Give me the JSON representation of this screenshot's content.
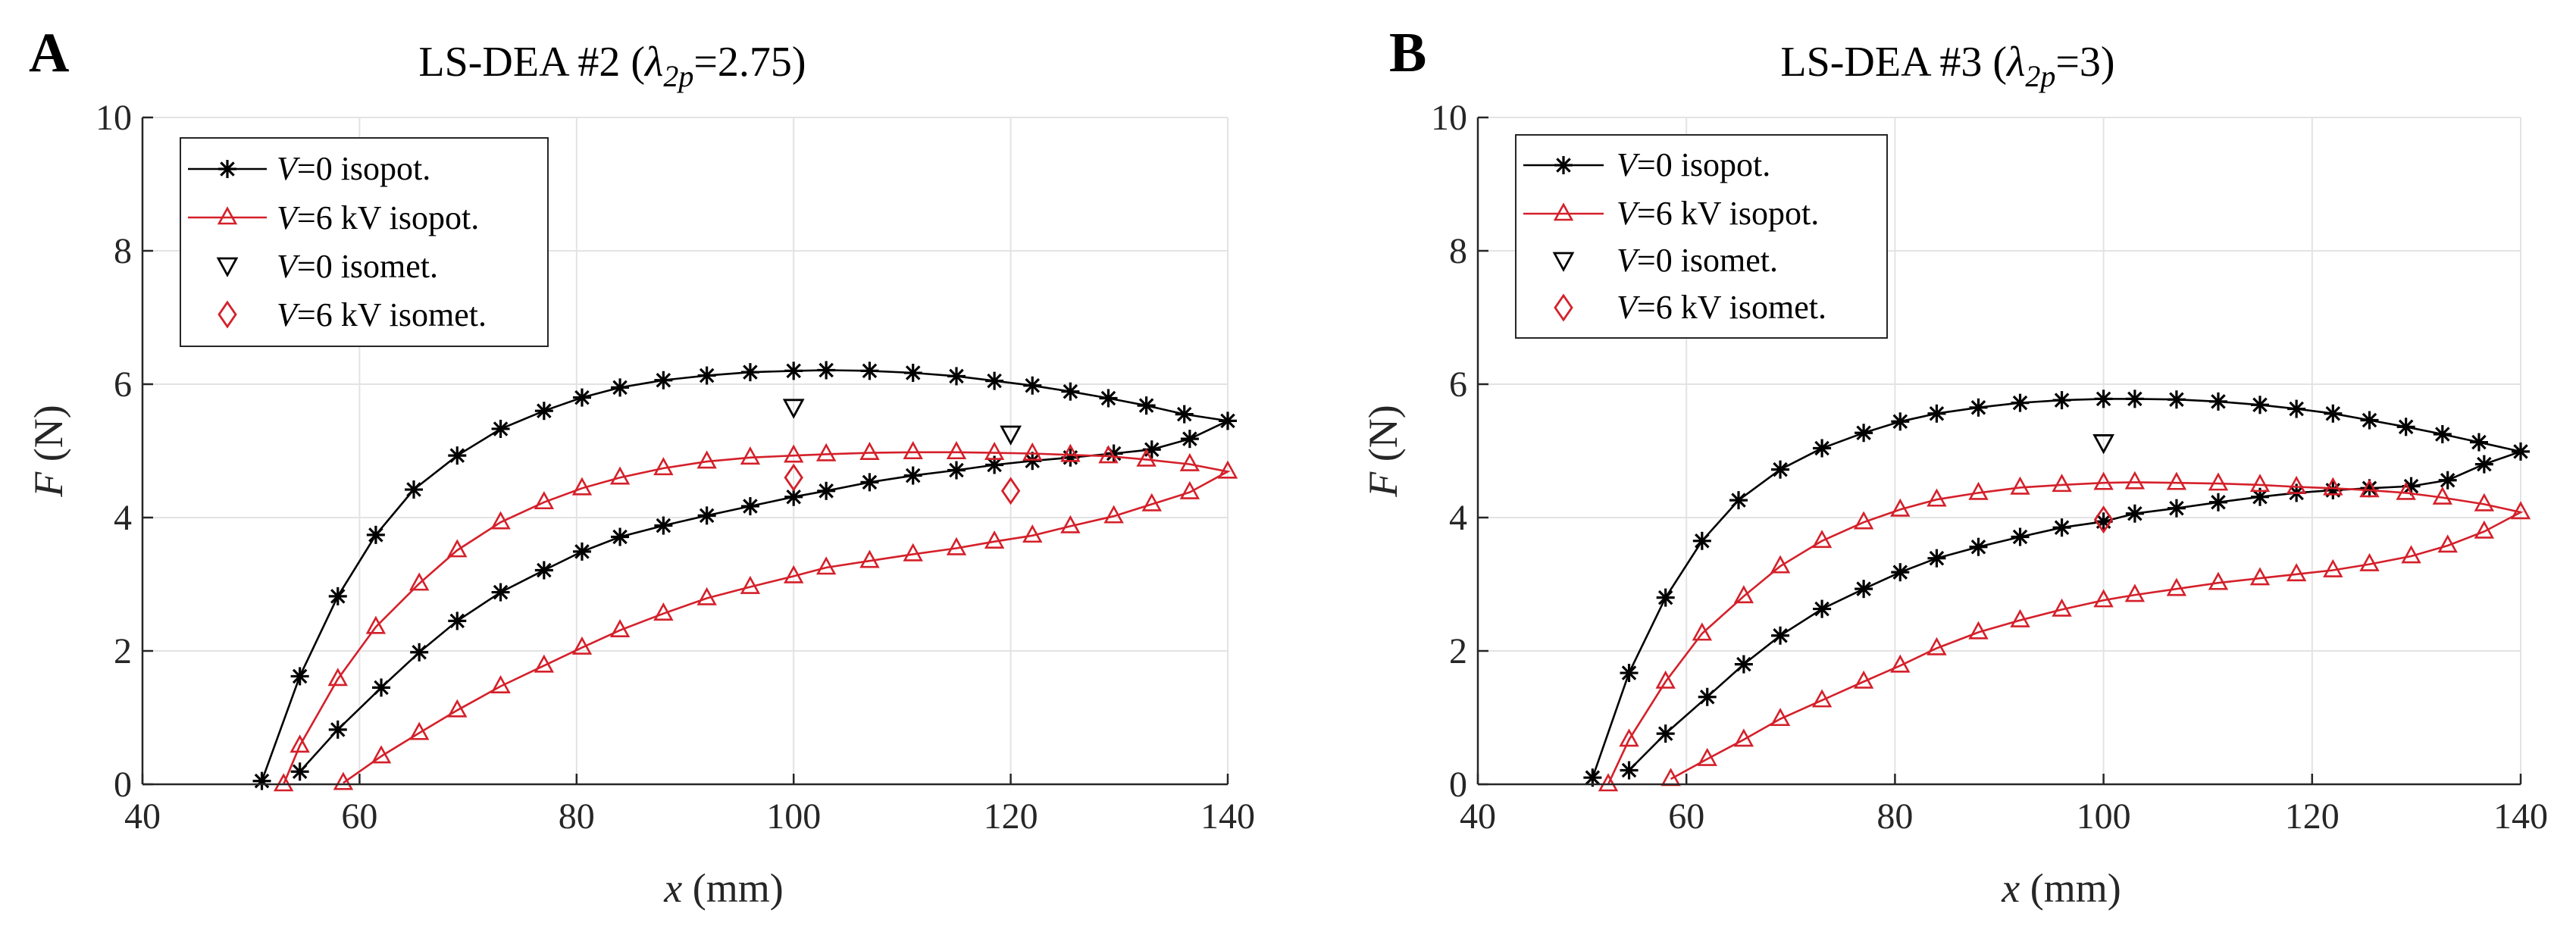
{
  "colors": {
    "black_series": "#000000",
    "red_series": "#d4202a",
    "grid": "#e3e3e3",
    "axis": "#262626",
    "background": "#ffffff"
  },
  "chart_data": [
    {
      "panel_label": "A",
      "type": "line",
      "title_prefix": "LS-DEA #2 (",
      "title_lambda": "λ",
      "title_subscript": "2p",
      "title_suffix": "=2.75)",
      "xlabel_var": "x",
      "xlabel_unit": " (mm)",
      "ylabel_var": "F",
      "ylabel_unit": " (N)",
      "xlim": [
        40,
        140
      ],
      "ylim": [
        0,
        10
      ],
      "xticks": [
        40,
        60,
        80,
        100,
        120,
        140
      ],
      "yticks": [
        0,
        2,
        4,
        6,
        8,
        10
      ],
      "xtick_labels": [
        "40",
        "60",
        "80",
        "100",
        "120",
        "140"
      ],
      "ytick_labels": [
        "0",
        "2",
        "4",
        "6",
        "8",
        "10"
      ],
      "grid": true,
      "legend_position": "top-left",
      "legend": [
        {
          "var": "V",
          "text": "=0 isopot."
        },
        {
          "var": "V",
          "text": "=6 kV isopot."
        },
        {
          "var": "V",
          "text": "=0 isomet."
        },
        {
          "var": "V",
          "text": "=6 kV isomet."
        }
      ],
      "series": [
        {
          "name": "V=0 isopot.",
          "color": "#000000",
          "marker": "star",
          "x": [
            51,
            54.5,
            58,
            61.5,
            65,
            69,
            73,
            77,
            80.5,
            84,
            88,
            92,
            96,
            100,
            103,
            107,
            111,
            115,
            118.5,
            122,
            125.5,
            129,
            132.5,
            136,
            140,
            136.5,
            133,
            129.5,
            125.5,
            122,
            118.5,
            115,
            111,
            107,
            103,
            100,
            96,
            92,
            88,
            84,
            80.5,
            77,
            73,
            69,
            65.5,
            62,
            58,
            54.5
          ],
          "y": [
            0.05,
            1.62,
            2.82,
            3.74,
            4.42,
            4.93,
            5.33,
            5.6,
            5.8,
            5.95,
            6.06,
            6.13,
            6.18,
            6.2,
            6.21,
            6.2,
            6.17,
            6.12,
            6.05,
            5.98,
            5.89,
            5.79,
            5.68,
            5.55,
            5.45,
            5.18,
            5.02,
            4.96,
            4.9,
            4.85,
            4.79,
            4.71,
            4.63,
            4.53,
            4.4,
            4.31,
            4.17,
            4.03,
            3.88,
            3.71,
            3.49,
            3.21,
            2.88,
            2.45,
            1.98,
            1.45,
            0.82,
            0.19
          ]
        },
        {
          "name": "V=6 kV isopot.",
          "color": "#d4202a",
          "marker": "triangle",
          "x": [
            53,
            54.5,
            58,
            61.5,
            65.5,
            69,
            73,
            77,
            80.5,
            84,
            88,
            92,
            96,
            100,
            103,
            107,
            111,
            115,
            118.5,
            122,
            125.5,
            129,
            132.5,
            136.5,
            140,
            136.5,
            133,
            129.5,
            125.5,
            122,
            118.5,
            115,
            111,
            107,
            103,
            100,
            96,
            92,
            88,
            84,
            80.5,
            77,
            73,
            69,
            65.5,
            62,
            58.5
          ],
          "y": [
            0.0,
            0.58,
            1.58,
            2.36,
            3.01,
            3.51,
            3.93,
            4.23,
            4.44,
            4.6,
            4.74,
            4.84,
            4.9,
            4.93,
            4.95,
            4.97,
            4.98,
            4.98,
            4.97,
            4.96,
            4.94,
            4.92,
            4.87,
            4.8,
            4.69,
            4.38,
            4.2,
            4.02,
            3.87,
            3.73,
            3.64,
            3.54,
            3.45,
            3.35,
            3.25,
            3.12,
            2.96,
            2.79,
            2.56,
            2.31,
            2.05,
            1.78,
            1.47,
            1.11,
            0.77,
            0.42,
            0.02
          ]
        },
        {
          "name": "V=0 isomet.",
          "color": "#000000",
          "marker": "triangle-down",
          "x": [
            100,
            120
          ],
          "y": [
            5.65,
            5.25
          ]
        },
        {
          "name": "V=6 kV isomet.",
          "color": "#d4202a",
          "marker": "diamond",
          "x": [
            100,
            120
          ],
          "y": [
            4.6,
            4.4
          ]
        }
      ]
    },
    {
      "panel_label": "B",
      "type": "line",
      "title_prefix": "LS-DEA #3 (",
      "title_lambda": "λ",
      "title_subscript": "2p",
      "title_suffix": "=3)",
      "xlabel_var": "x",
      "xlabel_unit": " (mm)",
      "ylabel_var": "F",
      "ylabel_unit": " (N)",
      "xlim": [
        40,
        140
      ],
      "ylim": [
        0,
        10
      ],
      "xticks": [
        40,
        60,
        80,
        100,
        120,
        140
      ],
      "yticks": [
        0,
        2,
        4,
        6,
        8,
        10
      ],
      "xtick_labels": [
        "40",
        "60",
        "80",
        "100",
        "120",
        "140"
      ],
      "ytick_labels": [
        "0",
        "2",
        "4",
        "6",
        "8",
        "10"
      ],
      "grid": true,
      "legend_position": "top-left",
      "legend": [
        {
          "var": "V",
          "text": "=0 isopot."
        },
        {
          "var": "V",
          "text": "=6 kV isopot."
        },
        {
          "var": "V",
          "text": "=0 isomet."
        },
        {
          "var": "V",
          "text": "=6 kV isomet."
        }
      ],
      "series": [
        {
          "name": "V=0 isopot.",
          "color": "#000000",
          "marker": "star",
          "x": [
            51,
            54.5,
            58,
            61.5,
            65,
            69,
            73,
            77,
            80.5,
            84,
            88,
            92,
            96,
            100,
            103,
            107,
            111,
            115,
            118.5,
            122,
            125.5,
            129,
            132.5,
            136,
            140,
            136.5,
            133,
            129.5,
            125.5,
            122,
            118.5,
            115,
            111,
            107,
            103,
            100,
            96,
            92,
            88,
            84,
            80.5,
            77,
            73,
            69,
            65.5,
            62,
            58,
            54.5
          ],
          "y": [
            0.1,
            1.67,
            2.8,
            3.65,
            4.26,
            4.72,
            5.04,
            5.27,
            5.44,
            5.56,
            5.65,
            5.72,
            5.76,
            5.78,
            5.78,
            5.77,
            5.74,
            5.69,
            5.63,
            5.56,
            5.46,
            5.36,
            5.25,
            5.13,
            4.99,
            4.8,
            4.56,
            4.47,
            4.44,
            4.41,
            4.37,
            4.31,
            4.23,
            4.14,
            4.06,
            3.94,
            3.85,
            3.71,
            3.56,
            3.39,
            3.18,
            2.93,
            2.63,
            2.23,
            1.8,
            1.31,
            0.76,
            0.21
          ]
        },
        {
          "name": "V=6 kV isopot.",
          "color": "#d4202a",
          "marker": "triangle",
          "x": [
            52.5,
            54.5,
            58,
            61.5,
            65.5,
            69,
            73,
            77,
            80.5,
            84,
            88,
            92,
            96,
            100,
            103,
            107,
            111,
            115,
            118.5,
            122,
            125.5,
            129,
            132.5,
            136.5,
            140,
            136.5,
            133,
            129.5,
            125.5,
            122,
            118.5,
            115,
            111,
            107,
            103,
            100,
            96,
            92,
            88,
            84,
            80.5,
            77,
            73,
            69,
            65.5,
            62,
            58.5
          ],
          "y": [
            0.0,
            0.67,
            1.54,
            2.26,
            2.82,
            3.27,
            3.65,
            3.93,
            4.12,
            4.27,
            4.37,
            4.45,
            4.49,
            4.52,
            4.53,
            4.52,
            4.51,
            4.49,
            4.46,
            4.44,
            4.41,
            4.37,
            4.3,
            4.2,
            4.08,
            3.79,
            3.58,
            3.42,
            3.3,
            3.21,
            3.15,
            3.09,
            3.02,
            2.93,
            2.84,
            2.76,
            2.62,
            2.46,
            2.28,
            2.04,
            1.78,
            1.54,
            1.26,
            0.98,
            0.67,
            0.38,
            0.08
          ]
        },
        {
          "name": "V=0 isomet.",
          "color": "#000000",
          "marker": "triangle-down",
          "x": [
            100
          ],
          "y": [
            5.12
          ]
        },
        {
          "name": "V=6 kV isomet.",
          "color": "#d4202a",
          "marker": "diamond",
          "x": [
            100
          ],
          "y": [
            3.97
          ]
        }
      ]
    }
  ]
}
